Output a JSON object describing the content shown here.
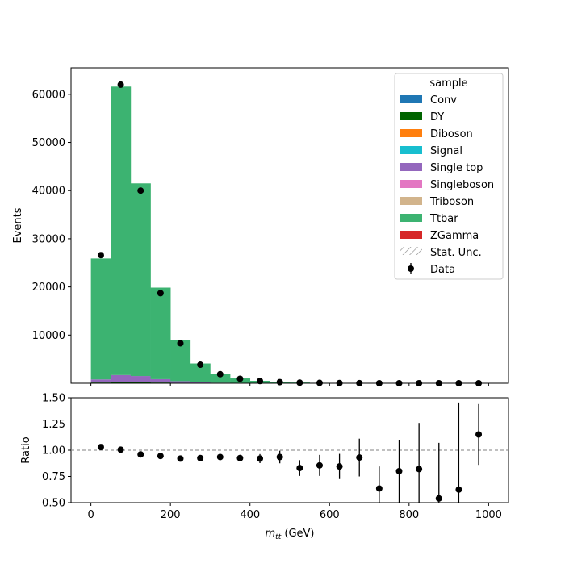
{
  "colors": {
    "Conv": "#1f77b4",
    "DY": "#006400",
    "Diboson": "#ff7f0e",
    "Signal": "#17becf",
    "Single top": "#9467bd",
    "Singleboson": "#e377c2",
    "Triboson": "#d2b48c",
    "Ttbar": "#3cb371",
    "ZGamma": "#d62728",
    "data": "#000000",
    "reference_line": "#808080"
  },
  "chart_data": [
    {
      "type": "bar",
      "subtype": "stacked-step-histogram",
      "xlabel_main": "m",
      "xlabel_sub": "tt",
      "xlabel_unit": " (GeV)",
      "ylabel": "Events",
      "xlim": [
        -50,
        1050
      ],
      "ylim": [
        0,
        65500
      ],
      "yticks": [
        10000,
        20000,
        30000,
        40000,
        50000,
        60000
      ],
      "yticklabels": [
        "10000",
        "20000",
        "30000",
        "40000",
        "50000",
        "60000"
      ],
      "bin_edges": [
        0,
        50,
        100,
        150,
        200,
        250,
        300,
        350,
        400,
        450,
        500,
        550,
        600,
        650,
        700,
        750,
        800,
        850,
        900,
        950,
        1000
      ],
      "bin_centers": [
        25,
        75,
        125,
        175,
        225,
        275,
        325,
        375,
        425,
        475,
        525,
        575,
        625,
        675,
        725,
        775,
        825,
        875,
        925,
        975
      ],
      "legend_title": "sample",
      "legend_position": "upper right",
      "legend_entries": [
        "Conv",
        "DY",
        "Diboson",
        "Signal",
        "Single top",
        "Singleboson",
        "Triboson",
        "Ttbar",
        "ZGamma",
        "Stat. Unc.",
        "Data"
      ],
      "series": [
        {
          "name": "Conv",
          "values": [
            0,
            0,
            0,
            0,
            0,
            0,
            0,
            0,
            0,
            0,
            0,
            0,
            0,
            0,
            0,
            0,
            0,
            0,
            0,
            0
          ]
        },
        {
          "name": "DY",
          "values": [
            150,
            300,
            250,
            150,
            80,
            40,
            20,
            10,
            5,
            3,
            2,
            1,
            1,
            0,
            0,
            0,
            0,
            0,
            0,
            0
          ]
        },
        {
          "name": "Diboson",
          "values": [
            0,
            0,
            0,
            0,
            0,
            0,
            0,
            0,
            0,
            0,
            0,
            0,
            0,
            0,
            0,
            0,
            0,
            0,
            0,
            0
          ]
        },
        {
          "name": "Signal",
          "values": [
            0,
            0,
            0,
            0,
            0,
            0,
            0,
            0,
            0,
            0,
            0,
            0,
            0,
            0,
            0,
            0,
            0,
            0,
            0,
            0
          ]
        },
        {
          "name": "Single top",
          "values": [
            650,
            1400,
            1250,
            700,
            350,
            180,
            90,
            45,
            25,
            15,
            8,
            5,
            3,
            2,
            1,
            1,
            0,
            0,
            0,
            0
          ]
        },
        {
          "name": "Singleboson",
          "values": [
            0,
            0,
            0,
            0,
            0,
            0,
            0,
            0,
            0,
            0,
            0,
            0,
            0,
            0,
            0,
            0,
            0,
            0,
            0,
            0
          ]
        },
        {
          "name": "Triboson",
          "values": [
            0,
            0,
            0,
            0,
            0,
            0,
            0,
            0,
            0,
            0,
            0,
            0,
            0,
            0,
            0,
            0,
            0,
            0,
            0,
            0
          ]
        },
        {
          "name": "Ttbar",
          "values": [
            25100,
            59900,
            40000,
            19000,
            8570,
            3880,
            1890,
            945,
            475,
            232,
            140,
            84,
            46,
            26,
            15,
            9,
            5,
            3,
            2,
            1
          ]
        },
        {
          "name": "ZGamma",
          "values": [
            0,
            0,
            0,
            0,
            0,
            0,
            0,
            0,
            0,
            0,
            0,
            0,
            0,
            0,
            0,
            0,
            0,
            0,
            0,
            0
          ]
        }
      ],
      "data_points": {
        "name": "Data",
        "values": [
          26600,
          62000,
          40000,
          18700,
          8300,
          3850,
          1880,
          930,
          460,
          235,
          125,
          76,
          42,
          26,
          10,
          8,
          4,
          2,
          1,
          1
        ]
      }
    },
    {
      "type": "scatter",
      "subtype": "ratio-with-error-bars",
      "ylabel": "Ratio",
      "xlabel_main": "m",
      "xlabel_sub": "tt",
      "xlabel_unit": " (GeV)",
      "xlim": [
        -50,
        1050
      ],
      "ylim": [
        0.5,
        1.5
      ],
      "xticks": [
        0,
        200,
        400,
        600,
        800,
        1000
      ],
      "xticklabels": [
        "0",
        "200",
        "400",
        "600",
        "800",
        "1000"
      ],
      "yticks": [
        0.5,
        0.75,
        1.0,
        1.25,
        1.5
      ],
      "yticklabels": [
        "0.50",
        "0.75",
        "1.00",
        "1.25",
        "1.50"
      ],
      "reference_value": 1.0,
      "x": [
        25,
        75,
        125,
        175,
        225,
        275,
        325,
        375,
        425,
        475,
        525,
        575,
        625,
        675,
        725,
        775,
        825,
        875,
        925,
        975
      ],
      "y": [
        1.03,
        1.005,
        0.96,
        0.945,
        0.92,
        0.925,
        0.935,
        0.925,
        0.92,
        0.935,
        0.83,
        0.855,
        0.845,
        0.93,
        0.635,
        0.8,
        0.82,
        0.54,
        0.625,
        1.15
      ],
      "yerr": [
        0.006,
        0.004,
        0.005,
        0.007,
        0.011,
        0.015,
        0.021,
        0.03,
        0.043,
        0.06,
        0.075,
        0.1,
        0.12,
        0.18,
        0.21,
        0.3,
        0.44,
        0.53,
        0.83,
        0.29
      ]
    }
  ]
}
